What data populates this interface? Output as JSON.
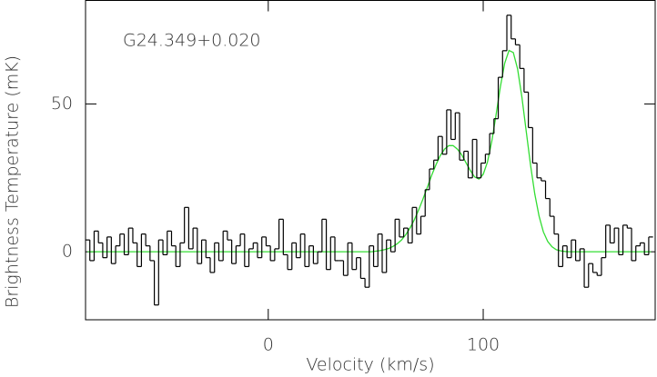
{
  "chart_data": {
    "type": "step",
    "annotation": "G24.349+0.020",
    "x_label": "Velocity (km/s)",
    "y_label": "Brightness Temperature (mK)",
    "xlim": [
      -85,
      180
    ],
    "ylim": [
      -23,
      85
    ],
    "xticks": [
      0,
      100
    ],
    "yticks": [
      0,
      50
    ],
    "x": [
      -84,
      -82,
      -80,
      -78,
      -76,
      -74,
      -72,
      -70,
      -68,
      -66,
      -64,
      -62,
      -60,
      -58,
      -56,
      -54,
      -52,
      -50,
      -48,
      -46,
      -44,
      -42,
      -40,
      -38,
      -36,
      -34,
      -32,
      -30,
      -28,
      -26,
      -24,
      -22,
      -20,
      -18,
      -16,
      -14,
      -12,
      -10,
      -8,
      -6,
      -4,
      -2,
      0,
      2,
      4,
      6,
      8,
      10,
      12,
      14,
      16,
      18,
      20,
      22,
      24,
      26,
      28,
      30,
      32,
      34,
      36,
      38,
      40,
      42,
      44,
      46,
      48,
      50,
      52,
      54,
      56,
      58,
      60,
      62,
      64,
      66,
      68,
      70,
      72,
      74,
      76,
      78,
      80,
      82,
      84,
      86,
      88,
      90,
      92,
      94,
      96,
      98,
      100,
      102,
      104,
      106,
      108,
      110,
      112,
      114,
      116,
      118,
      120,
      122,
      124,
      126,
      128,
      130,
      132,
      134,
      136,
      138,
      140,
      142,
      144,
      146,
      148,
      150,
      152,
      154,
      156,
      158,
      160,
      162,
      164,
      166,
      168,
      170,
      172,
      174,
      176,
      178
    ],
    "series": [
      {
        "color": "#000000",
        "steps": true,
        "values": [
          4,
          -3,
          7,
          3,
          -2,
          5,
          -4,
          2,
          6,
          -1,
          8,
          3,
          -5,
          6,
          2,
          -3,
          -18,
          4,
          -1,
          7,
          2,
          -5,
          3,
          15,
          1,
          8,
          -4,
          4,
          -2,
          -7,
          3,
          -3,
          7,
          4,
          -4,
          2,
          6,
          -5,
          1,
          3,
          -2,
          5,
          2,
          -3,
          1,
          11,
          -1,
          -6,
          3,
          -2,
          6,
          -5,
          2,
          -4,
          0,
          11,
          -6,
          5,
          -3,
          -3,
          -8,
          3,
          -6,
          -2,
          -9,
          -12,
          2,
          -5,
          6,
          -7,
          4,
          0,
          11,
          5,
          8,
          3,
          15,
          6,
          12,
          21,
          28,
          31,
          39,
          33,
          48,
          38,
          47,
          31,
          34,
          25,
          38,
          25,
          30,
          33,
          40,
          45,
          59,
          68,
          80,
          72,
          70,
          62,
          54,
          42,
          30,
          25,
          24,
          18,
          12,
          6,
          -5,
          2,
          -2,
          4,
          -3,
          1,
          -12,
          -4,
          -7,
          -8,
          -2,
          9,
          3,
          8,
          -1,
          9,
          8,
          -3,
          2,
          3,
          -1,
          5
        ]
      },
      {
        "color": "#33dd33",
        "steps": false,
        "values": [
          0,
          0,
          0,
          0,
          0,
          0,
          0,
          0,
          0,
          0,
          0,
          0,
          0,
          0,
          0,
          0,
          0,
          0,
          0,
          0,
          0,
          0,
          0,
          0,
          0,
          0,
          0,
          0,
          0,
          0,
          0,
          0,
          0,
          0,
          0,
          0,
          0,
          0,
          0,
          0,
          0,
          0,
          0,
          0,
          0,
          0,
          0,
          0,
          0,
          0,
          0,
          0,
          0,
          0,
          0,
          0,
          0,
          0,
          0,
          0,
          0,
          0,
          0,
          0,
          0,
          0,
          0,
          0.2,
          0.4,
          0.7,
          1.1,
          1.8,
          2.7,
          4.0,
          5.8,
          8.1,
          10.9,
          14.2,
          17.9,
          21.8,
          25.8,
          29.4,
          32.5,
          34.7,
          35.9,
          35.9,
          34.7,
          32.8,
          30.1,
          27.5,
          25.3,
          24.6,
          26.2,
          30.4,
          37.4,
          46.4,
          55.9,
          63.8,
          68.1,
          67.4,
          61.8,
          52.3,
          40.8,
          29.4,
          19.5,
          12.0,
          6.7,
          3.5,
          1.7,
          0.7,
          0.3,
          0.1,
          0,
          0,
          0,
          0,
          0,
          0,
          0,
          0,
          0,
          0,
          0,
          0,
          0,
          0,
          0,
          0,
          0,
          0,
          0,
          0
        ]
      }
    ]
  }
}
